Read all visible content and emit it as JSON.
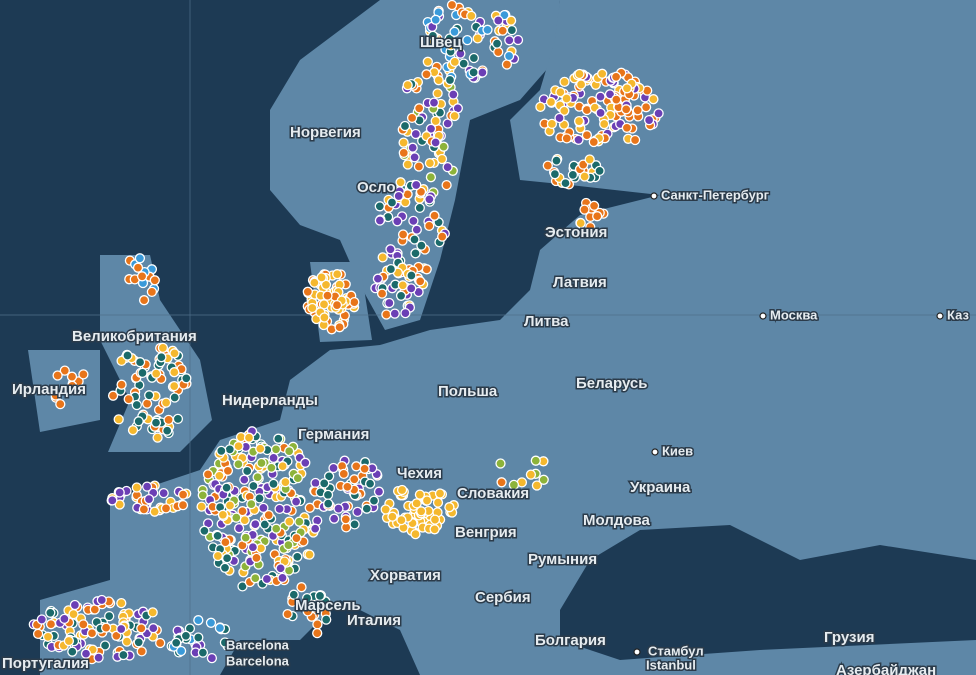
{
  "map": {
    "countries": [
      "Норвегия",
      "Швец",
      "Эстония",
      "Латвия",
      "Литва",
      "Великобритания",
      "Ирландия",
      "Нидерланды",
      "Германия",
      "Польша",
      "Беларусь",
      "Украина",
      "Чехия",
      "Словакия",
      "Молдова",
      "Венгрия",
      "Румыния",
      "Хорватия",
      "Сербия",
      "Болгария",
      "Италия",
      "Португалия",
      "Грузия",
      "Азербайджан",
      "Осло",
      "Марсель"
    ],
    "cities": [
      "Санкт-Петербург",
      "Москва",
      "Киев",
      "Каз",
      "Стамбул",
      "Istanbul",
      "Barcelona",
      "Barcelona"
    ]
  }
}
